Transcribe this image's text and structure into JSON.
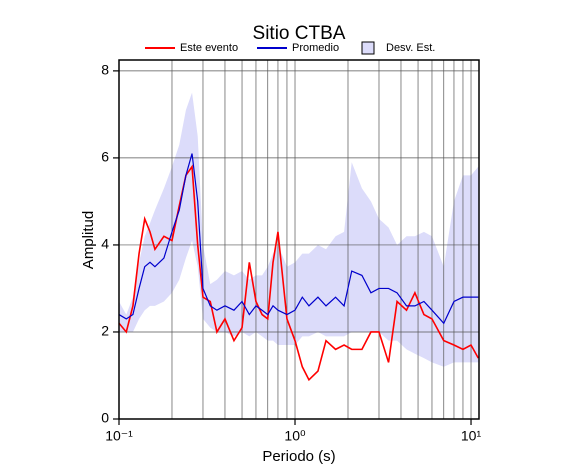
{
  "chart_data": {
    "type": "line",
    "title": "Sitio CTBA",
    "xlabel": "Periodo (s)",
    "ylabel": "Amplitud",
    "xscale": "log",
    "grid": true,
    "xlim": [
      0.1,
      11.1
    ],
    "ylim": [
      0,
      8.25
    ],
    "xticks": [
      {
        "value": 0.1,
        "label": "10⁻¹"
      },
      {
        "value": 1,
        "label": "10⁰"
      },
      {
        "value": 10,
        "label": "10¹"
      }
    ],
    "xgrid": [
      0.2,
      0.3,
      0.4,
      0.5,
      0.6,
      0.7,
      0.8,
      0.9,
      1,
      2,
      3,
      4,
      5,
      6,
      7,
      8,
      9,
      10
    ],
    "yticks": [
      0,
      2,
      4,
      6,
      8
    ],
    "x": [
      0.1,
      0.11,
      0.12,
      0.13,
      0.14,
      0.15,
      0.16,
      0.18,
      0.2,
      0.22,
      0.24,
      0.26,
      0.28,
      0.3,
      0.33,
      0.36,
      0.4,
      0.45,
      0.5,
      0.55,
      0.6,
      0.65,
      0.7,
      0.75,
      0.8,
      0.9,
      1.0,
      1.1,
      1.2,
      1.35,
      1.5,
      1.7,
      1.9,
      2.1,
      2.4,
      2.7,
      3.0,
      3.4,
      3.8,
      4.3,
      4.8,
      5.4,
      6,
      7,
      8,
      9,
      10,
      11
    ],
    "band": {
      "name": "Desv. Est.",
      "color": "#dcdcfa",
      "upper": [
        2.7,
        2.4,
        2.8,
        3.6,
        4.2,
        4.5,
        4.8,
        5.3,
        5.8,
        6.3,
        7.1,
        7.5,
        6.5,
        4.0,
        3.1,
        3.2,
        3.4,
        3.3,
        3.4,
        3.2,
        3.3,
        3.3,
        3.5,
        3.8,
        4.0,
        3.5,
        3.6,
        3.8,
        3.8,
        4.0,
        3.9,
        4.2,
        4.3,
        5.9,
        5.3,
        5.0,
        4.6,
        4.4,
        4.0,
        4.2,
        4.2,
        4.3,
        4.2,
        3.5,
        5.0,
        5.6,
        5.6,
        5.8
      ],
      "lower": [
        2.0,
        2.0,
        2.0,
        2.3,
        2.5,
        2.6,
        2.6,
        2.7,
        2.9,
        3.2,
        3.7,
        4.1,
        3.5,
        2.3,
        2.1,
        2.0,
        2.0,
        1.9,
        2.0,
        1.9,
        2.0,
        1.9,
        1.8,
        1.8,
        1.7,
        1.7,
        1.7,
        1.9,
        1.9,
        2.0,
        1.9,
        1.9,
        1.9,
        2.0,
        2.0,
        2.0,
        2.0,
        1.8,
        1.8,
        1.6,
        1.5,
        1.4,
        1.3,
        1.2,
        1.3,
        1.3,
        1.3,
        1.3
      ]
    },
    "series": [
      {
        "name": "Este evento",
        "color": "#ff0000",
        "values": [
          2.2,
          2.0,
          2.6,
          3.8,
          4.6,
          4.3,
          3.9,
          4.2,
          4.1,
          4.9,
          5.6,
          5.8,
          4.0,
          2.8,
          2.7,
          2.0,
          2.3,
          1.8,
          2.1,
          3.6,
          2.7,
          2.4,
          2.3,
          3.6,
          4.3,
          2.3,
          1.8,
          1.2,
          0.9,
          1.1,
          1.8,
          1.6,
          1.7,
          1.6,
          1.6,
          2.0,
          2.0,
          1.3,
          2.7,
          2.5,
          2.9,
          2.4,
          2.3,
          1.8,
          1.7,
          1.6,
          1.7,
          1.4
        ]
      },
      {
        "name": "Promedio",
        "color": "#0000cc",
        "values": [
          2.4,
          2.3,
          2.4,
          3.0,
          3.5,
          3.6,
          3.5,
          3.7,
          4.3,
          4.8,
          5.6,
          6.1,
          5.0,
          3.0,
          2.6,
          2.5,
          2.6,
          2.5,
          2.7,
          2.4,
          2.6,
          2.5,
          2.4,
          2.6,
          2.5,
          2.4,
          2.5,
          2.8,
          2.6,
          2.8,
          2.6,
          2.8,
          2.6,
          3.4,
          3.3,
          2.9,
          3.0,
          3.0,
          2.9,
          2.6,
          2.6,
          2.7,
          2.5,
          2.2,
          2.7,
          2.8,
          2.8,
          2.8
        ]
      }
    ]
  }
}
